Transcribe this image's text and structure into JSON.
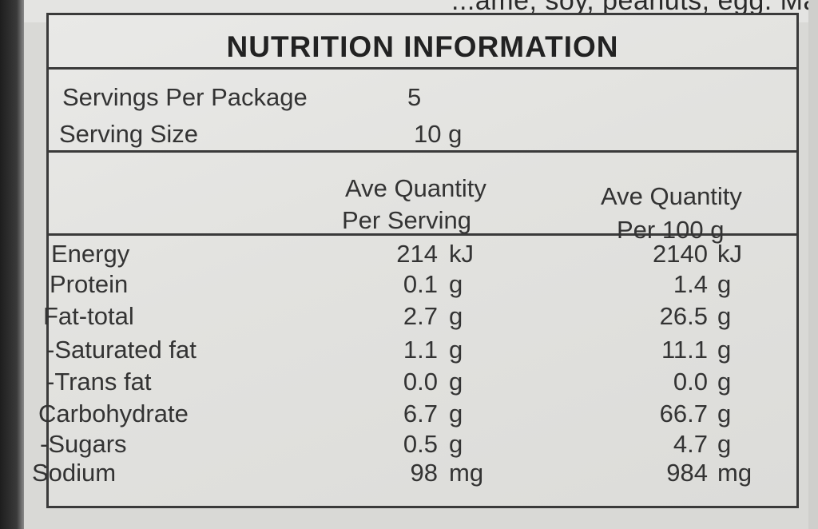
{
  "top_fragment": "...ame, soy, peanuts, egg. May",
  "title": "NUTRITION INFORMATION",
  "servings": {
    "per_package_label": "Servings Per Package",
    "per_package_value": "5",
    "size_label": "Serving Size",
    "size_value": "10 g"
  },
  "columns": {
    "per_serving_line1": "Ave Quantity",
    "per_serving_line2": "Per Serving",
    "per_100g_line1": "Ave Quantity",
    "per_100g_line2": "Per 100 g"
  },
  "rows": [
    {
      "label": "Energy",
      "serving": "214",
      "serving_unit": "kJ",
      "per100": "2140",
      "per100_unit": "kJ"
    },
    {
      "label": "Protein",
      "serving": "0.1",
      "serving_unit": "g",
      "per100": "1.4",
      "per100_unit": "g"
    },
    {
      "label": "Fat-total",
      "serving": "2.7",
      "serving_unit": "g",
      "per100": "26.5",
      "per100_unit": "g"
    },
    {
      "label": " -Saturated fat",
      "serving": "1.1",
      "serving_unit": "g",
      "per100": "11.1",
      "per100_unit": "g"
    },
    {
      "label": " -Trans fat",
      "serving": "0.0",
      "serving_unit": "g",
      "per100": "0.0",
      "per100_unit": "g"
    },
    {
      "label": "Carbohydrate",
      "serving": "6.7",
      "serving_unit": "g",
      "per100": "66.7",
      "per100_unit": "g"
    },
    {
      "label": " -Sugars",
      "serving": "0.5",
      "serving_unit": "g",
      "per100": "4.7",
      "per100_unit": "g"
    },
    {
      "label": "Sodium",
      "serving": "98",
      "serving_unit": "mg",
      "per100": "984",
      "per100_unit": "mg"
    }
  ]
}
